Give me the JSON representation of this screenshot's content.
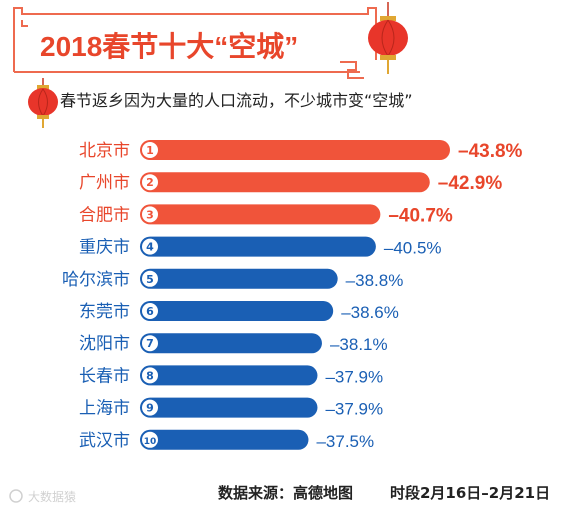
{
  "header": {
    "title": "2018春节十大“空城”",
    "subtitle": "春节返乡因为大量的人口流动，不少城市变“空城”"
  },
  "colors": {
    "top3": "#f0543a",
    "rest": "#1a5fb4",
    "title": "#e8462b",
    "frame": "#ee6a4f",
    "label_rest": "#1a5fb4",
    "label_top": "#e8462b"
  },
  "chart_data": {
    "type": "bar",
    "orientation": "horizontal",
    "categories": [
      "北京市",
      "广州市",
      "合肥市",
      "重庆市",
      "哈尔滨市",
      "东莞市",
      "沈阳市",
      "长春市",
      "上海市",
      "武汉市"
    ],
    "ranks": [
      "1",
      "2",
      "3",
      "4",
      "5",
      "6",
      "7",
      "8",
      "9",
      "10"
    ],
    "values": [
      -43.8,
      -42.9,
      -40.7,
      -40.5,
      -38.8,
      -38.6,
      -38.1,
      -37.9,
      -37.9,
      -37.5
    ],
    "value_labels": [
      "–43.8%",
      "–42.9%",
      "–40.7%",
      "–40.5%",
      "–38.8%",
      "–38.6%",
      "–38.1%",
      "–37.9%",
      "–37.9%",
      "–37.5%"
    ],
    "highlight_top": 3
  },
  "footer": {
    "source": "数据来源：高德地图",
    "period": "时段2月16日–2月21日",
    "watermark": "大数据猿"
  }
}
